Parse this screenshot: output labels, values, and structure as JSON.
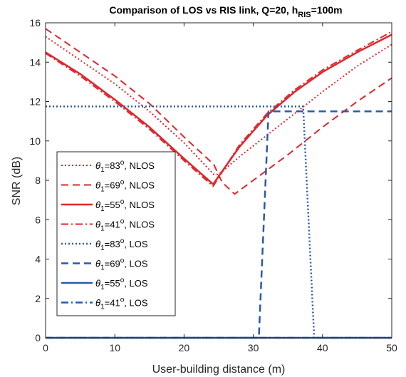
{
  "chart_data": {
    "type": "line",
    "title": "Comparison of LOS vs RIS link, Q=20, h",
    "title_subscript": "RIS",
    "title_suffix": "=100m",
    "xlabel": "User-building distance (m)",
    "ylabel": "SNR (dB)",
    "xlim": [
      0,
      50
    ],
    "ylim": [
      0,
      16
    ],
    "xticks": [
      0,
      10,
      20,
      30,
      40,
      50
    ],
    "yticks": [
      0,
      2,
      4,
      6,
      8,
      10,
      12,
      14,
      16
    ],
    "grid": false,
    "legend_position": "left-middle",
    "colors": {
      "nlos": "#e0262b",
      "los": "#2a5aa8"
    },
    "series": [
      {
        "name": "θ1=83°, NLOS",
        "legend_symbol": "θ",
        "legend_sub": "1",
        "legend_mid": "=83",
        "legend_sup": "o",
        "legend_tail": ", NLOS",
        "color": "#e0262b",
        "style": "dotted",
        "width": 2,
        "x": [
          0,
          5,
          10,
          15,
          20,
          24.3,
          25,
          28,
          32,
          36,
          40,
          45,
          50
        ],
        "y": [
          15.3,
          14.1,
          12.9,
          11.5,
          9.9,
          8.3,
          8.3,
          9.2,
          10.3,
          11.4,
          12.5,
          13.8,
          14.9
        ]
      },
      {
        "name": "θ1=69°, NLOS",
        "legend_symbol": "θ",
        "legend_sub": "1",
        "legend_mid": "=69",
        "legend_sup": "o",
        "legend_tail": ", NLOS",
        "color": "#e0262b",
        "style": "dashed",
        "width": 2,
        "x": [
          0,
          5,
          10,
          15,
          20,
          24.3,
          25.5,
          27.3,
          30,
          35,
          40,
          45,
          50
        ],
        "y": [
          15.7,
          14.5,
          13.3,
          11.9,
          10.2,
          8.8,
          7.9,
          7.3,
          8.0,
          9.3,
          10.7,
          12.0,
          13.2
        ]
      },
      {
        "name": "θ1=55°, NLOS",
        "legend_symbol": "θ",
        "legend_sub": "1",
        "legend_mid": "=55",
        "legend_sup": "o",
        "legend_tail": ", NLOS",
        "color": "#e0262b",
        "style": "solid",
        "width": 2.5,
        "x": [
          0,
          5,
          10,
          15,
          20,
          24.2,
          28,
          32,
          36,
          40,
          45,
          50
        ],
        "y": [
          14.5,
          13.4,
          12.1,
          10.7,
          9.1,
          7.8,
          9.7,
          11.3,
          12.5,
          13.5,
          14.5,
          15.4
        ]
      },
      {
        "name": "θ1=41°, NLOS",
        "legend_symbol": "θ",
        "legend_sub": "1",
        "legend_mid": "=41",
        "legend_sup": "o",
        "legend_tail": ", NLOS",
        "color": "#e0262b",
        "style": "dashdot",
        "width": 2,
        "x": [
          0,
          5,
          10,
          15,
          20,
          24.2,
          28,
          32,
          36,
          40,
          45,
          50
        ],
        "y": [
          14.45,
          13.3,
          12.0,
          10.6,
          9.0,
          7.7,
          9.8,
          11.4,
          12.6,
          13.6,
          14.6,
          15.55
        ]
      },
      {
        "name": "θ1=83°, LOS",
        "legend_symbol": "θ",
        "legend_sub": "1",
        "legend_mid": "=83",
        "legend_sup": "o",
        "legend_tail": ", LOS",
        "color": "#2a5aa8",
        "style": "dotted",
        "width": 2.5,
        "x": [
          0,
          37.2,
          38.8,
          50
        ],
        "y": [
          11.75,
          11.75,
          0,
          0
        ]
      },
      {
        "name": "θ1=69°, LOS",
        "legend_symbol": "θ",
        "legend_sub": "1",
        "legend_mid": "=69",
        "legend_sup": "o",
        "legend_tail": ", LOS",
        "color": "#2a5aa8",
        "style": "dashed",
        "width": 2.5,
        "x": [
          0,
          30.8,
          32.2,
          50
        ],
        "y": [
          0,
          0,
          11.5,
          11.5
        ]
      },
      {
        "name": "θ1=55°, LOS",
        "legend_symbol": "θ",
        "legend_sub": "1",
        "legend_mid": "=55",
        "legend_sup": "o",
        "legend_tail": ", LOS",
        "color": "#2a5aa8",
        "style": "solid",
        "width": 2.5,
        "x": [
          0,
          50
        ],
        "y": [
          0,
          0
        ]
      },
      {
        "name": "θ1=41°, LOS",
        "legend_symbol": "θ",
        "legend_sub": "1",
        "legend_mid": "=41",
        "legend_sup": "o",
        "legend_tail": ", LOS",
        "color": "#2a5aa8",
        "style": "dashdot",
        "width": 2.5,
        "x": [
          0,
          50
        ],
        "y": [
          0,
          0
        ]
      }
    ]
  }
}
